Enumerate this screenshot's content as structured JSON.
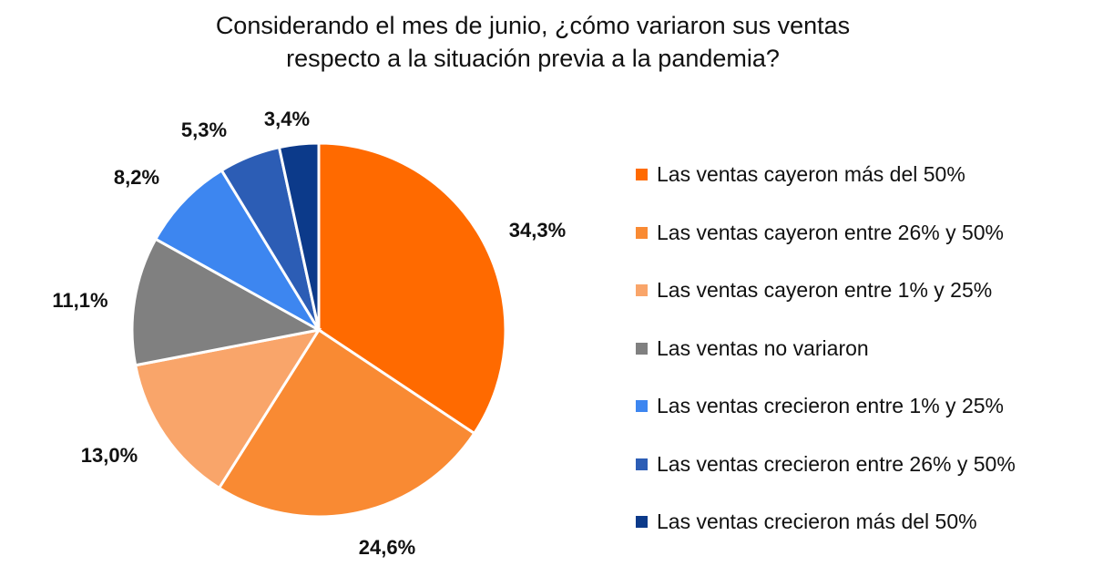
{
  "chart_data": {
    "type": "pie",
    "title_lines": [
      "Considerando el mes de junio, ¿cómo variaron sus ventas",
      "respecto a la situación previa a la pandemia?"
    ],
    "legend_position": "right",
    "slices": [
      {
        "label": "Las ventas cayeron más del 50%",
        "value": 34.3,
        "display": "34,3%",
        "color": "#FF6A00"
      },
      {
        "label": "Las ventas cayeron entre 26% y 50%",
        "value": 24.6,
        "display": "24,6%",
        "color": "#F98A33"
      },
      {
        "label": "Las ventas cayeron entre 1% y 25%",
        "value": 13.0,
        "display": "13,0%",
        "color": "#F9A56A"
      },
      {
        "label": "Las ventas no variaron",
        "value": 11.1,
        "display": "11,1%",
        "color": "#808080"
      },
      {
        "label": "Las ventas crecieron entre 1% y 25%",
        "value": 8.2,
        "display": "8,2%",
        "color": "#3D86F0"
      },
      {
        "label": "Las ventas crecieron entre 26% y 50%",
        "value": 5.3,
        "display": "5,3%",
        "color": "#2C5DB5"
      },
      {
        "label": "Las ventas crecieron más del 50%",
        "value": 3.4,
        "display": "3,4%",
        "color": "#0C3A8A"
      }
    ]
  }
}
